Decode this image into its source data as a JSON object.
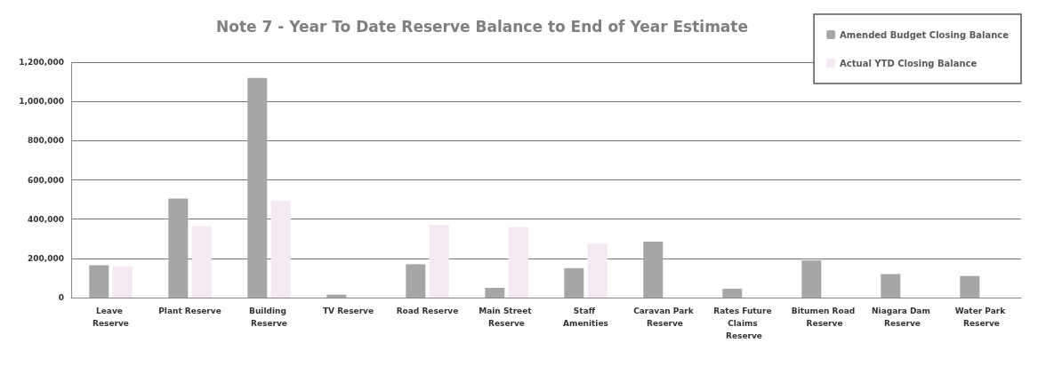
{
  "chart_data": {
    "type": "bar",
    "title": "Note 7 - Year To Date Reserve Balance to End of Year Estimate",
    "categories": [
      "Leave Reserve",
      "Plant Reserve",
      "Building Reserve",
      "TV Reserve",
      "Road Reserve",
      "Main Street Reserve",
      "Staff Amenities",
      "Caravan Park Reserve",
      "Rates Future Claims Reserve",
      "Bitumen Road Reserve",
      "Niagara Dam Reserve",
      "Water Park Reserve"
    ],
    "series": [
      {
        "name": "Amended Budget Closing Balance",
        "color": "#a6a6a6",
        "values": [
          165000,
          505000,
          1120000,
          15000,
          170000,
          50000,
          150000,
          285000,
          45000,
          190000,
          120000,
          110000
        ]
      },
      {
        "name": "Actual YTD Closing Balance",
        "color": "#f5e8f2",
        "values": [
          160000,
          365000,
          495000,
          0,
          370000,
          360000,
          275000,
          0,
          0,
          0,
          0,
          0
        ]
      }
    ],
    "ylim": [
      0,
      1200000
    ],
    "yticks": [
      0,
      {
        "value": 200000,
        "label": "200,000"
      },
      {
        "value": 400000,
        "label": "400,000"
      },
      {
        "value": 600000,
        "label": "600,000"
      },
      {
        "value": 800000,
        "label": "800,000"
      },
      {
        "value": 1000000,
        "label": "1,000,000"
      },
      {
        "value": 1200000,
        "label": "1,200,000"
      }
    ],
    "grid": "y",
    "legend": "top right"
  }
}
